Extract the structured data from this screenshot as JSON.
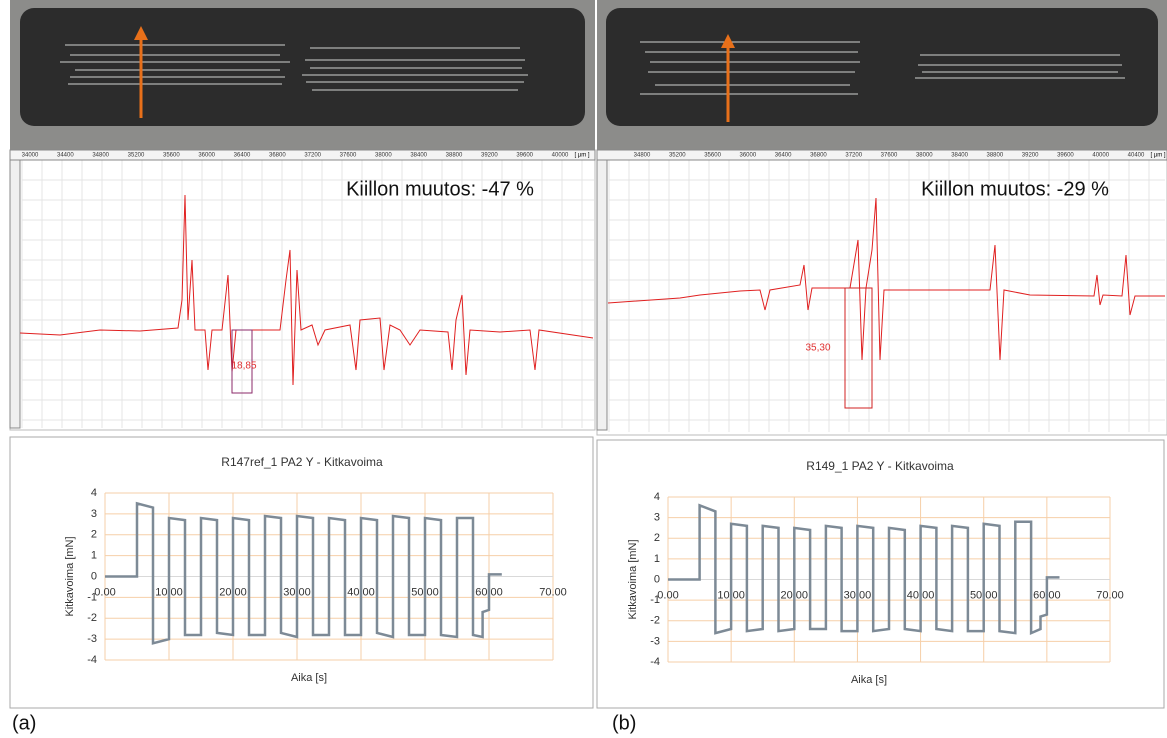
{
  "panels": [
    {
      "label": "(a)",
      "annotation": "Kiillon muutos: -47 %",
      "measure": "18,85",
      "scale_labels": [
        "34000",
        "34400",
        "34800",
        "35200",
        "35600",
        "36000",
        "36400",
        "36800",
        "37200",
        "37600",
        "38000",
        "38400",
        "38800",
        "39200",
        "39600",
        "40000"
      ],
      "scale_unit": "[ µm ]"
    },
    {
      "label": "(b)",
      "annotation": "Kiillon muutos: -29 %",
      "measure": "35,30",
      "scale_labels": [
        "34800",
        "35200",
        "35600",
        "36000",
        "36400",
        "36800",
        "37200",
        "37600",
        "38000",
        "38400",
        "38800",
        "39200",
        "39600",
        "40000",
        "40400"
      ],
      "scale_unit": "[ µm ]"
    }
  ],
  "chart_data": [
    {
      "type": "line",
      "title": "R147ref_1 PA2 Y - Kitkavoima",
      "x_label": "Aika [s]",
      "y_label": "Kitkavoima [mN]",
      "xlim": [
        0,
        70
      ],
      "xticks": [
        {
          "value": 0,
          "label": "0.00"
        },
        {
          "value": 10,
          "label": "10.00"
        },
        {
          "value": 20,
          "label": "20.00"
        },
        {
          "value": 30,
          "label": "30.00"
        },
        {
          "value": 40,
          "label": "40.00"
        },
        {
          "value": 50,
          "label": "50.00"
        },
        {
          "value": 60,
          "label": "60.00"
        },
        {
          "value": 70,
          "label": "70.00"
        }
      ],
      "ylim": [
        -4,
        4
      ],
      "yticks": [
        -4,
        -3,
        -2,
        -1,
        0,
        1,
        2,
        3,
        4
      ],
      "grid": true,
      "grid_color": "#f6cfa8",
      "color": "#7d8a96",
      "x": [
        0,
        5,
        5,
        7.5,
        7.5,
        10,
        10,
        12.5,
        12.5,
        15,
        15,
        17.5,
        17.5,
        20,
        20,
        22.5,
        22.5,
        25,
        25,
        27.5,
        27.5,
        30,
        30,
        32.5,
        32.5,
        35,
        35,
        37.5,
        37.5,
        40,
        40,
        42.5,
        42.5,
        45,
        45,
        47.5,
        47.5,
        50,
        50,
        52.5,
        52.5,
        55,
        55,
        57.5,
        57.5,
        59,
        59,
        60,
        60,
        62
      ],
      "values": [
        0,
        0,
        3.5,
        3.3,
        -3.2,
        -3,
        2.8,
        2.7,
        -2.8,
        -2.8,
        2.8,
        2.7,
        -2.7,
        -2.8,
        2.8,
        2.7,
        -2.8,
        -2.8,
        2.9,
        2.8,
        -2.7,
        -2.9,
        2.9,
        2.8,
        -2.8,
        -2.8,
        2.8,
        2.7,
        -2.8,
        -2.8,
        2.8,
        2.7,
        -2.7,
        -2.9,
        2.9,
        2.8,
        -2.8,
        -2.8,
        2.8,
        2.7,
        -2.8,
        -2.9,
        2.8,
        2.8,
        -2.8,
        -2.9,
        -1.7,
        -1.6,
        0.1,
        0.1
      ]
    },
    {
      "type": "line",
      "title": "R149_1 PA2 Y - Kitkavoima",
      "x_label": "Aika [s]",
      "y_label": "Kitkavoima [mN]",
      "xlim": [
        0,
        70
      ],
      "xticks": [
        {
          "value": 0,
          "label": "0.00"
        },
        {
          "value": 10,
          "label": "10.00"
        },
        {
          "value": 20,
          "label": "20.00"
        },
        {
          "value": 30,
          "label": "30.00"
        },
        {
          "value": 40,
          "label": "40.00"
        },
        {
          "value": 50,
          "label": "50.00"
        },
        {
          "value": 60,
          "label": "60.00"
        },
        {
          "value": 70,
          "label": "70.00"
        }
      ],
      "ylim": [
        -4,
        4
      ],
      "yticks": [
        -4,
        -3,
        -2,
        -1,
        0,
        1,
        2,
        3,
        4
      ],
      "grid": true,
      "grid_color": "#f6cfa8",
      "color": "#7d8a96",
      "x": [
        0,
        5,
        5,
        7.5,
        7.5,
        10,
        10,
        12.5,
        12.5,
        15,
        15,
        17.5,
        17.5,
        20,
        20,
        22.5,
        22.5,
        25,
        25,
        27.5,
        27.5,
        30,
        30,
        32.5,
        32.5,
        35,
        35,
        37.5,
        37.5,
        40,
        40,
        42.5,
        42.5,
        45,
        45,
        47.5,
        47.5,
        50,
        50,
        52.5,
        52.5,
        55,
        55,
        57.5,
        57.5,
        59,
        59,
        60,
        60,
        62
      ],
      "values": [
        0,
        0,
        3.6,
        3.3,
        -2.6,
        -2.4,
        2.7,
        2.6,
        -2.5,
        -2.4,
        2.6,
        2.5,
        -2.5,
        -2.4,
        2.5,
        2.4,
        -2.4,
        -2.4,
        2.6,
        2.5,
        -2.5,
        -2.5,
        2.6,
        2.5,
        -2.5,
        -2.4,
        2.5,
        2.4,
        -2.4,
        -2.5,
        2.6,
        2.5,
        -2.4,
        -2.5,
        2.6,
        2.5,
        -2.5,
        -2.5,
        2.7,
        2.6,
        -2.5,
        -2.6,
        2.8,
        2.8,
        -2.6,
        -2.4,
        -1.8,
        -1.7,
        0.1,
        0.1
      ]
    }
  ]
}
